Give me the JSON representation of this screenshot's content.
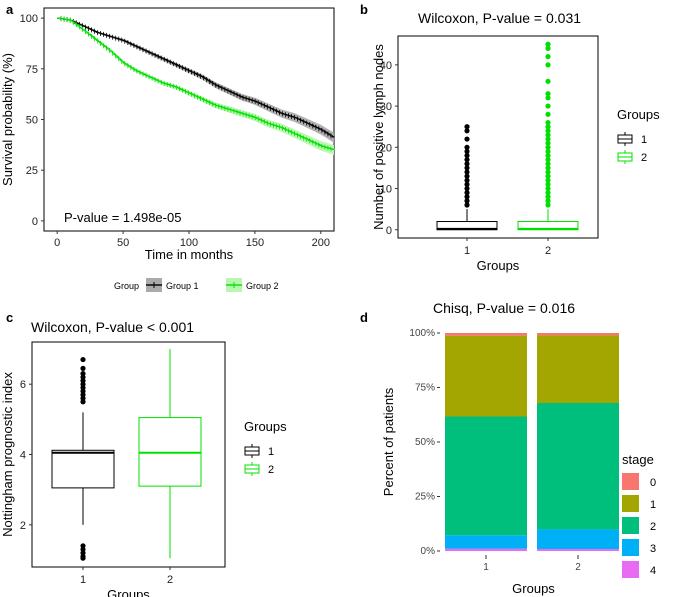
{
  "chart_data": [
    {
      "panel": "a",
      "type": "line",
      "title": "",
      "xlabel": "Time in months",
      "ylabel": "Survival probability (%)",
      "xlim": [
        -10,
        210
      ],
      "ylim": [
        -5,
        105
      ],
      "xticks": [
        "0",
        "50",
        "100",
        "150",
        "200"
      ],
      "yticks": [
        "0",
        "25",
        "50",
        "75",
        "100"
      ],
      "annotation": "P-value = 1.498e-05",
      "legend_title": "Group",
      "legend_position": "bottom",
      "series": [
        {
          "name": "Group 1",
          "color": "#000000",
          "band": "#aaaaaa",
          "x": [
            0,
            10,
            20,
            30,
            40,
            50,
            60,
            70,
            80,
            90,
            100,
            110,
            120,
            130,
            140,
            150,
            160,
            170,
            180,
            190,
            200,
            210
          ],
          "y": [
            100,
            99,
            96,
            93,
            91,
            89,
            86,
            83,
            80,
            77,
            74,
            71,
            67,
            64,
            61,
            59,
            56,
            53,
            51,
            48,
            45,
            41
          ]
        },
        {
          "name": "Group 2",
          "color": "#00e000",
          "band": "#b9f7b0",
          "x": [
            0,
            10,
            20,
            30,
            40,
            50,
            60,
            70,
            80,
            90,
            100,
            110,
            120,
            130,
            140,
            150,
            160,
            170,
            180,
            190,
            200,
            210
          ],
          "y": [
            100,
            99,
            94,
            89,
            84,
            78,
            74,
            71,
            68,
            66,
            63,
            60,
            57,
            55,
            53,
            51,
            48,
            46,
            43,
            40,
            37,
            35
          ]
        }
      ]
    },
    {
      "panel": "b",
      "type": "box",
      "title": "Wilcoxon, P-value = 0.031",
      "xlabel": "Groups",
      "ylabel": "Number of positive lymph nodes",
      "categories": [
        "1",
        "2"
      ],
      "ylim": [
        -2,
        47
      ],
      "yticks": [
        0,
        10,
        20,
        30,
        40
      ],
      "legend_title": "Groups",
      "legend_position": "right",
      "boxes": [
        {
          "name": "1",
          "color": "#000000",
          "min": 0,
          "q1": 0,
          "median": 0.2,
          "q3": 2,
          "max": 5,
          "outliers": [
            6,
            7,
            8,
            9,
            10,
            11,
            12,
            13,
            14,
            15,
            16,
            17,
            18,
            19,
            20,
            22,
            24,
            25
          ]
        },
        {
          "name": "2",
          "color": "#00e000",
          "min": 0,
          "q1": 0,
          "median": 0.2,
          "q3": 2,
          "max": 5,
          "outliers": [
            6,
            7,
            8,
            9,
            10,
            11,
            12,
            13,
            14,
            15,
            16,
            17,
            18,
            19,
            20,
            21,
            22,
            23,
            24,
            25,
            26,
            28,
            30,
            32,
            33,
            36,
            40,
            42,
            44,
            45
          ]
        }
      ]
    },
    {
      "panel": "c",
      "type": "box",
      "title": "Wilcoxon, P-value < 0.001",
      "xlabel": "Groups",
      "ylabel": "Nottingham prognostic index",
      "categories": [
        "1",
        "2"
      ],
      "ylim": [
        0.8,
        7.2
      ],
      "yticks": [
        2,
        4,
        6
      ],
      "legend_title": "Groups",
      "legend_position": "right",
      "boxes": [
        {
          "name": "1",
          "color": "#000000",
          "min": 2.0,
          "q1": 3.05,
          "median": 4.05,
          "q3": 4.12,
          "max": 5.2,
          "outliers": [
            1.05,
            1.1,
            1.2,
            1.3,
            1.4,
            5.5,
            5.6,
            5.7,
            5.8,
            5.9,
            6.0,
            6.1,
            6.2,
            6.3,
            6.45,
            6.7
          ]
        },
        {
          "name": "2",
          "color": "#00e000",
          "min": 1.05,
          "q1": 3.1,
          "median": 4.05,
          "q3": 5.05,
          "max": 7.0,
          "outliers": []
        }
      ]
    },
    {
      "panel": "d",
      "type": "bar",
      "stacked": true,
      "title": "Chisq, P-value = 0.016",
      "xlabel": "Groups",
      "ylabel": "Percent of patients",
      "categories": [
        "1",
        "2"
      ],
      "yticks": [
        "0%",
        "25%",
        "50%",
        "75%",
        "100%"
      ],
      "ylim": [
        0,
        1
      ],
      "legend_title": "stage",
      "legend_position": "right",
      "series": [
        {
          "name": "0",
          "color": "#f8766d",
          "values": [
            0.013,
            0.011
          ]
        },
        {
          "name": "1",
          "color": "#a3a500",
          "values": [
            0.37,
            0.31
          ]
        },
        {
          "name": "2",
          "color": "#00bf7d",
          "values": [
            0.545,
            0.58
          ]
        },
        {
          "name": "3",
          "color": "#00b0f6",
          "values": [
            0.062,
            0.09
          ]
        },
        {
          "name": "4",
          "color": "#e76bf3",
          "values": [
            0.01,
            0.009
          ]
        }
      ]
    }
  ],
  "panel_labels": [
    "a",
    "b",
    "c",
    "d"
  ],
  "colors": {
    "group1": "#000000",
    "group2": "#00e000",
    "frame": "#000000"
  }
}
